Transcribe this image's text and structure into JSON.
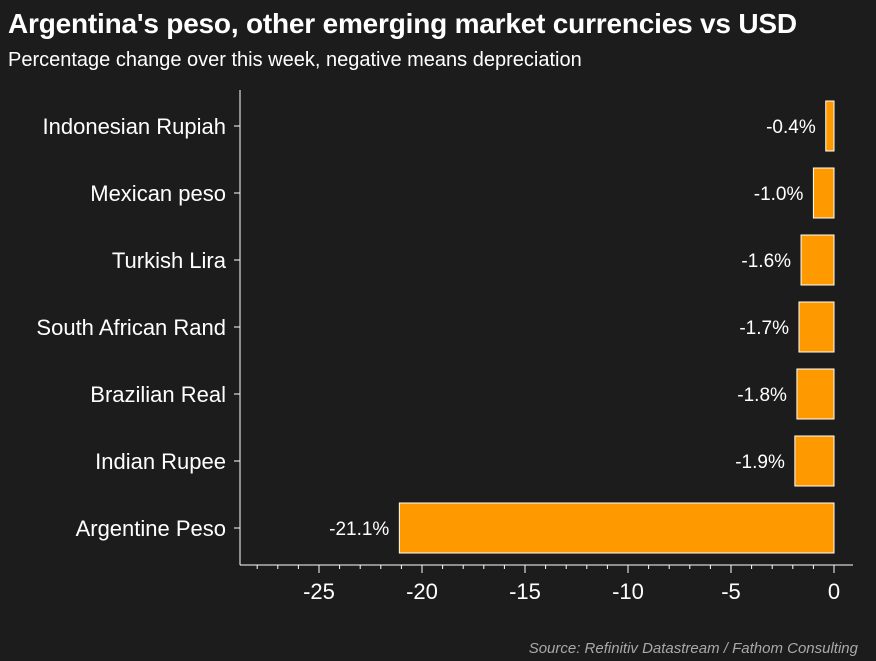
{
  "header": {
    "title": "Argentina's peso, other emerging market currencies vs USD",
    "subtitle": "Percentage change over this week, negative means depreciation"
  },
  "footer": {
    "source": "Source: Refinitiv Datastream / Fathom Consulting"
  },
  "chart_data": {
    "type": "bar",
    "orientation": "horizontal",
    "categories": [
      "Indonesian Rupiah",
      "Mexican peso",
      "Turkish Lira",
      "South African Rand",
      "Brazilian Real",
      "Indian Rupee",
      "Argentine Peso"
    ],
    "values": [
      -0.4,
      -1.0,
      -1.6,
      -1.7,
      -1.8,
      -1.9,
      -21.1
    ],
    "value_labels": [
      "-0.4%",
      "-1.0%",
      "-1.6%",
      "-1.7%",
      "-1.8%",
      "-1.9%",
      "-21.1%"
    ],
    "title": "Argentina's peso, other emerging market currencies vs USD",
    "subtitle": "Percentage change over this week, negative means depreciation",
    "xlabel": "",
    "ylabel": "",
    "xlim": [
      -28,
      0.8
    ],
    "x_ticks": [
      -25,
      -20,
      -15,
      -10,
      -5,
      0
    ],
    "x_tick_labels": [
      "-25",
      "-20",
      "-15",
      "-10",
      "-5",
      "0"
    ],
    "grid": false,
    "legend": "none",
    "bar_color": "#ff9900",
    "bar_edge_color": "#ffffff",
    "background_color": "#1c1c1c"
  }
}
